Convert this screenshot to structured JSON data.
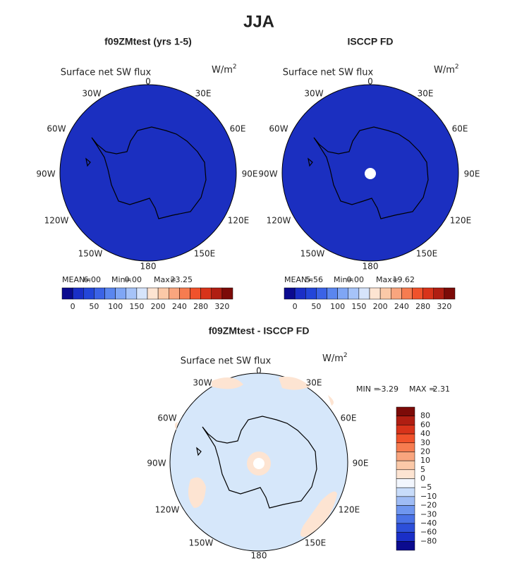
{
  "title": "JJA",
  "panels": [
    {
      "title": "f09ZMtest (yrs 1-5)",
      "variable": "Surface net SW flux",
      "units": {
        "base": "W/m",
        "exponent": "2"
      },
      "lon_labels": [
        "0",
        "30E",
        "60E",
        "90E",
        "120E",
        "150E",
        "180",
        "150W",
        "120W",
        "90W",
        "60W",
        "30W"
      ],
      "stats": [
        {
          "label": "MEAN=",
          "value": "6.00"
        },
        {
          "label": "Min=",
          "value": "0.00"
        },
        {
          "label": "Max=",
          "value": "23.25"
        }
      ],
      "colorbar": {
        "colors": [
          "#0b0b8f",
          "#1a2fc7",
          "#2346d9",
          "#3b63e6",
          "#5a86ef",
          "#7fa6f5",
          "#a6c3f8",
          "#d6e4fb",
          "#fde4d2",
          "#fbc9a8",
          "#f9a57e",
          "#f67c50",
          "#f0522b",
          "#d8331a",
          "#b01e12",
          "#7c0b08"
        ],
        "labels": [
          "0",
          "50",
          "100",
          "150",
          "200",
          "240",
          "280",
          "320"
        ]
      }
    },
    {
      "title": "ISCCP FD",
      "variable": "Surface net SW flux",
      "units": {
        "base": "W/m",
        "exponent": "2"
      },
      "lon_labels": [
        "0",
        "30E",
        "60E",
        "90E",
        "120E",
        "150E",
        "180",
        "150W",
        "120W",
        "90W",
        "60W",
        "30W"
      ],
      "stats": [
        {
          "label": "MEAN=",
          "value": "5.56"
        },
        {
          "label": "Min=",
          "value": "0.00"
        },
        {
          "label": "Max=",
          "value": "19.62"
        }
      ],
      "colorbar": {
        "colors": [
          "#0b0b8f",
          "#1a2fc7",
          "#2346d9",
          "#3b63e6",
          "#5a86ef",
          "#7fa6f5",
          "#a6c3f8",
          "#d6e4fb",
          "#fde4d2",
          "#fbc9a8",
          "#f9a57e",
          "#f67c50",
          "#f0522b",
          "#d8331a",
          "#b01e12",
          "#7c0b08"
        ],
        "labels": [
          "0",
          "50",
          "100",
          "150",
          "200",
          "240",
          "280",
          "320"
        ]
      }
    },
    {
      "title": "f09ZMtest - ISCCP FD",
      "variable": "Surface net SW flux",
      "units": {
        "base": "W/m",
        "exponent": "2"
      },
      "lon_labels": [
        "0",
        "30E",
        "60E",
        "90E",
        "120E",
        "150E",
        "180",
        "150W",
        "120W",
        "90W",
        "60W",
        "30W"
      ],
      "stats": [
        {
          "label": "MIN =",
          "value": "-3.29"
        },
        {
          "label": "MAX =",
          "value": "2.31"
        }
      ],
      "colorbar": {
        "colors": [
          "#7c0b08",
          "#b01e12",
          "#d8331a",
          "#f0522b",
          "#f67c50",
          "#f9a57e",
          "#fbc9a8",
          "#fde4d2",
          "#f2f6fd",
          "#c8dcfa",
          "#9fbcf5",
          "#6f96ef",
          "#4a72e6",
          "#2d4fd9",
          "#1a2fc7",
          "#0b0b8f"
        ],
        "labels": [
          "80",
          "60",
          "40",
          "30",
          "20",
          "10",
          "5",
          "0",
          "−5",
          "−10",
          "−20",
          "−30",
          "−40",
          "−60",
          "−80"
        ]
      }
    }
  ]
}
